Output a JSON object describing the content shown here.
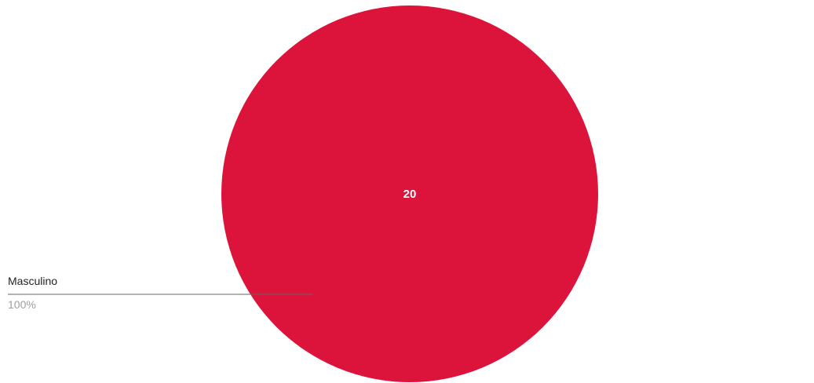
{
  "chart_data": {
    "type": "pie",
    "slices": [
      {
        "label": "Masculino",
        "value": 20,
        "value_label": "20",
        "percent_label": "100%",
        "color": "#dc143c"
      }
    ],
    "label_color": "#ffffff",
    "leader_line_color": "#666666",
    "legend": "left"
  }
}
